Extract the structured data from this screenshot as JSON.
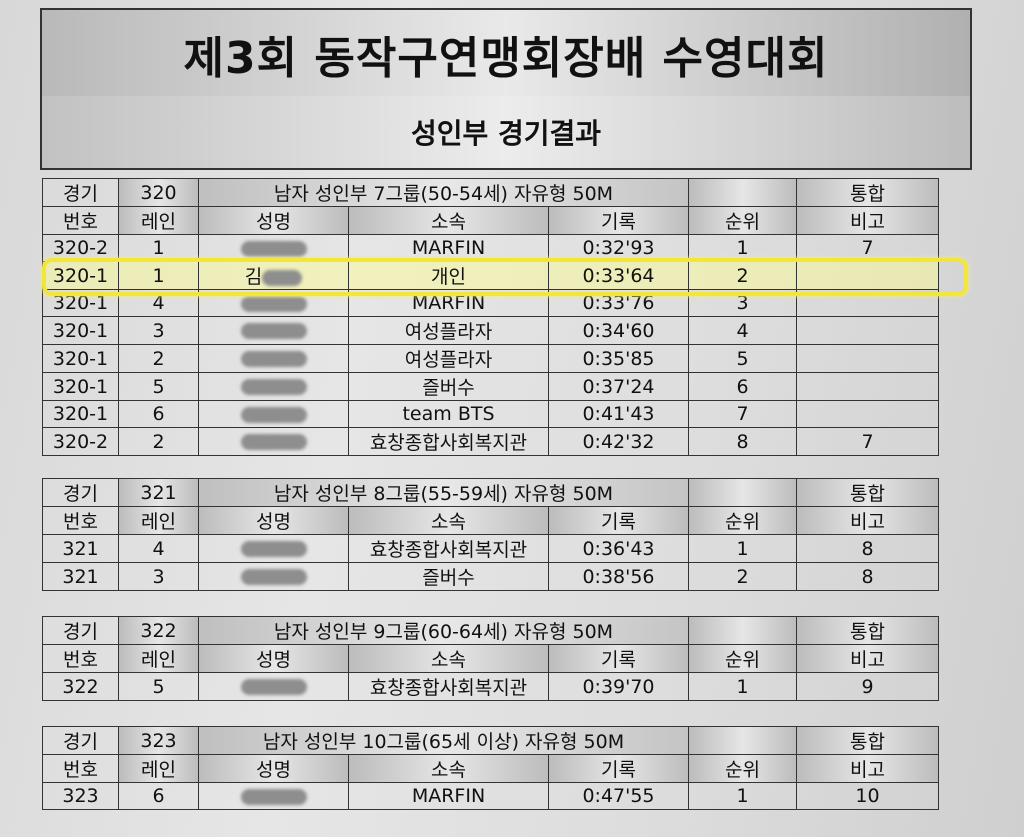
{
  "title": "제3회 동작구연맹회장배 수영대회",
  "subtitle": "성인부 경기결과",
  "headers": {
    "event_no_top": "경기",
    "event_no_bottom": "번호",
    "lane": "레인",
    "name": "성명",
    "team": "소속",
    "record": "기록",
    "rank": "순위",
    "combined": "통합",
    "remark": "비고"
  },
  "events": [
    {
      "number": "320",
      "description": "남자 성인부 7그룹(50-54세) 자유형 50M",
      "rows": [
        {
          "event": "320-2",
          "lane": "1",
          "team": "MARFIN",
          "record": "0:32'93",
          "rank": "1",
          "remark": "7"
        },
        {
          "event": "320-1",
          "lane": "1",
          "name_visible": "김",
          "team": "개인",
          "record": "0:33'64",
          "rank": "2",
          "remark": ""
        },
        {
          "event": "320-1",
          "lane": "4",
          "team": "MARFIN",
          "record": "0:33'76",
          "rank": "3",
          "remark": ""
        },
        {
          "event": "320-1",
          "lane": "3",
          "team": "여성플라자",
          "record": "0:34'60",
          "rank": "4",
          "remark": ""
        },
        {
          "event": "320-1",
          "lane": "2",
          "team": "여성플라자",
          "record": "0:35'85",
          "rank": "5",
          "remark": ""
        },
        {
          "event": "320-1",
          "lane": "5",
          "team": "즐버수",
          "record": "0:37'24",
          "rank": "6",
          "remark": ""
        },
        {
          "event": "320-1",
          "lane": "6",
          "team": "team BTS",
          "record": "0:41'43",
          "rank": "7",
          "remark": ""
        },
        {
          "event": "320-2",
          "lane": "2",
          "team": "효창종합사회복지관",
          "record": "0:42'32",
          "rank": "8",
          "remark": "7"
        }
      ]
    },
    {
      "number": "321",
      "description": "남자 성인부 8그룹(55-59세) 자유형 50M",
      "rows": [
        {
          "event": "321",
          "lane": "4",
          "team": "효창종합사회복지관",
          "record": "0:36'43",
          "rank": "1",
          "remark": "8"
        },
        {
          "event": "321",
          "lane": "3",
          "team": "즐버수",
          "record": "0:38'56",
          "rank": "2",
          "remark": "8"
        }
      ]
    },
    {
      "number": "322",
      "description": "남자 성인부 9그룹(60-64세) 자유형 50M",
      "rows": [
        {
          "event": "322",
          "lane": "5",
          "team": "효창종합사회복지관",
          "record": "0:39'70",
          "rank": "1",
          "remark": "9"
        }
      ]
    },
    {
      "number": "323",
      "description": "남자 성인부 10그룹(65세 이상) 자유형 50M",
      "rows": [
        {
          "event": "323",
          "lane": "6",
          "team": "MARFIN",
          "record": "0:47'55",
          "rank": "1",
          "remark": "10"
        }
      ]
    }
  ],
  "highlight_color": "#f3e63a"
}
